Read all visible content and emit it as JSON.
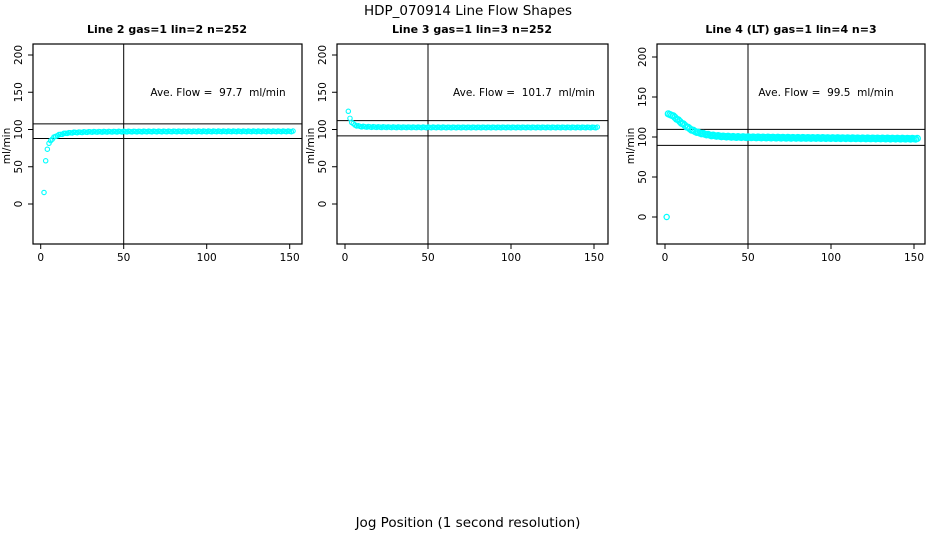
{
  "figure": {
    "title": "HDP_070914  Line Flow Shapes",
    "xlabel": "Jog Position (1 second resolution)"
  },
  "shared": {
    "ylabel": "ml/min",
    "marker_color": "#00FFFF",
    "axis_color": "#000000"
  },
  "chart_data": [
    {
      "type": "scatter",
      "title": "Line 2 gas=1 lin=2 n=252",
      "n": 252,
      "annotation": "Ave. Flow =  97.7  ml/min",
      "ave_flow_ml_min": 97.7,
      "ylabel": "ml/min",
      "x_ticks": [
        0,
        50,
        100,
        150
      ],
      "y_ticks": [
        0,
        50,
        100,
        150,
        200
      ],
      "ref_h": [
        107.5,
        87.9
      ],
      "ref_v": 50,
      "legend": "none",
      "grid": false,
      "series": [
        {
          "name": "flow-curve",
          "marker": "open-circle",
          "marker_r": 2.2,
          "dense": true,
          "points": [
            [
              2,
              15
            ],
            [
              3,
              58
            ],
            [
              4,
              74
            ],
            [
              5,
              81
            ],
            [
              6,
              85
            ],
            [
              7,
              87.5
            ],
            [
              8,
              89.5
            ],
            [
              10,
              92
            ],
            [
              12,
              93.5
            ],
            [
              15,
              95
            ],
            [
              20,
              96
            ],
            [
              30,
              96.8
            ],
            [
              50,
              97.2
            ],
            [
              80,
              97.4
            ],
            [
              120,
              97.5
            ],
            [
              152,
              97.5
            ]
          ]
        }
      ]
    },
    {
      "type": "scatter",
      "title": "Line 3 gas=1 lin=3 n=252",
      "n": 252,
      "annotation": "Ave. Flow =  101.7  ml/min",
      "ave_flow_ml_min": 101.7,
      "ylabel": "ml/min",
      "x_ticks": [
        0,
        50,
        100,
        150
      ],
      "y_ticks": [
        0,
        50,
        100,
        150,
        200
      ],
      "ref_h": [
        111.9,
        91.5
      ],
      "ref_v": 50,
      "legend": "none",
      "grid": false,
      "series": [
        {
          "name": "flow-curve",
          "marker": "open-circle",
          "marker_r": 2.2,
          "dense": true,
          "points": [
            [
              2,
              124
            ],
            [
              3,
              115
            ],
            [
              4,
              110
            ],
            [
              5,
              107.5
            ],
            [
              6,
              106
            ],
            [
              8,
              104.5
            ],
            [
              10,
              104
            ],
            [
              14,
              103.5
            ],
            [
              20,
              103.2
            ],
            [
              30,
              103
            ],
            [
              60,
              102.8
            ],
            [
              100,
              102.8
            ],
            [
              152,
              102.8
            ]
          ]
        }
      ]
    },
    {
      "type": "scatter",
      "title": "Line 4 (LT) gas=1 lin=4 n=3",
      "n": 3,
      "annotation": "Ave. Flow =  99.5  ml/min",
      "ave_flow_ml_min": 99.5,
      "ylabel": "ml/min",
      "x_ticks": [
        0,
        50,
        100,
        150
      ],
      "y_ticks": [
        0,
        50,
        100,
        150,
        200
      ],
      "ref_h": [
        109.5,
        89.6
      ],
      "ref_v": 50,
      "legend": "none",
      "grid": false,
      "series": [
        {
          "name": "flow-curve",
          "marker": "open-circle",
          "marker_r": 3.0,
          "dense": true,
          "points": [
            [
              2,
              128.5
            ],
            [
              4,
              127.5
            ],
            [
              6,
              124.5
            ],
            [
              8,
              121
            ],
            [
              10,
              117.5
            ],
            [
              12,
              114.5
            ],
            [
              14,
              111.5
            ],
            [
              16,
              109
            ],
            [
              18,
              107
            ],
            [
              20,
              105.5
            ],
            [
              24,
              103.5
            ],
            [
              28,
              102
            ],
            [
              34,
              100.8
            ],
            [
              42,
              100
            ],
            [
              55,
              99.5
            ],
            [
              75,
              99
            ],
            [
              100,
              98.6
            ],
            [
              125,
              98.2
            ],
            [
              152,
              97.8
            ]
          ]
        },
        {
          "name": "outlier-point",
          "marker": "open-circle",
          "marker_r": 2.6,
          "dense": false,
          "points": [
            [
              1,
              0
            ]
          ]
        }
      ]
    }
  ]
}
